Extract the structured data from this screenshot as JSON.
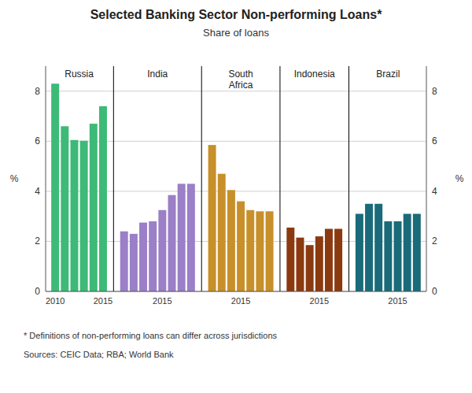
{
  "chart_data": {
    "type": "bar",
    "title": "Selected Banking Sector Non-performing Loans*",
    "subtitle": "Share of loans",
    "ylabel": "%",
    "footnote": "*     Definitions of non-performing loans can differ across jurisdictions",
    "sources": "Sources:  CEIC Data; RBA; World Bank",
    "ylim": [
      0,
      9
    ],
    "yticks": [
      0,
      2,
      4,
      6,
      8
    ],
    "grid": true,
    "series": [
      {
        "name": "Russia",
        "color": "#3dba77",
        "values": [
          8.3,
          6.6,
          6.05,
          6.02,
          6.7,
          7.4
        ],
        "categories": [
          "2010",
          null,
          null,
          null,
          null,
          "2015"
        ]
      },
      {
        "name": "India",
        "color": "#9b7fc7",
        "values": [
          2.4,
          2.3,
          2.75,
          2.8,
          3.25,
          3.85,
          4.3,
          4.3
        ],
        "categories": [
          null,
          null,
          null,
          null,
          "2015",
          null,
          null,
          null
        ]
      },
      {
        "name": "South\nAfrica",
        "color": "#c8902a",
        "values": [
          5.85,
          4.7,
          4.05,
          3.6,
          3.25,
          3.2,
          3.2
        ],
        "categories": [
          null,
          null,
          null,
          "2015",
          null,
          null,
          null
        ]
      },
      {
        "name": "Indonesia",
        "color": "#8b3a10",
        "values": [
          2.55,
          2.15,
          1.85,
          2.2,
          2.5,
          2.5
        ],
        "categories": [
          null,
          null,
          null,
          "2015",
          null,
          null
        ]
      },
      {
        "name": "Brazil",
        "color": "#1a6b7a",
        "values": [
          3.1,
          3.5,
          3.5,
          2.8,
          2.8,
          3.1,
          3.1
        ],
        "categories": [
          null,
          null,
          null,
          null,
          "2015",
          null,
          null
        ]
      }
    ]
  }
}
